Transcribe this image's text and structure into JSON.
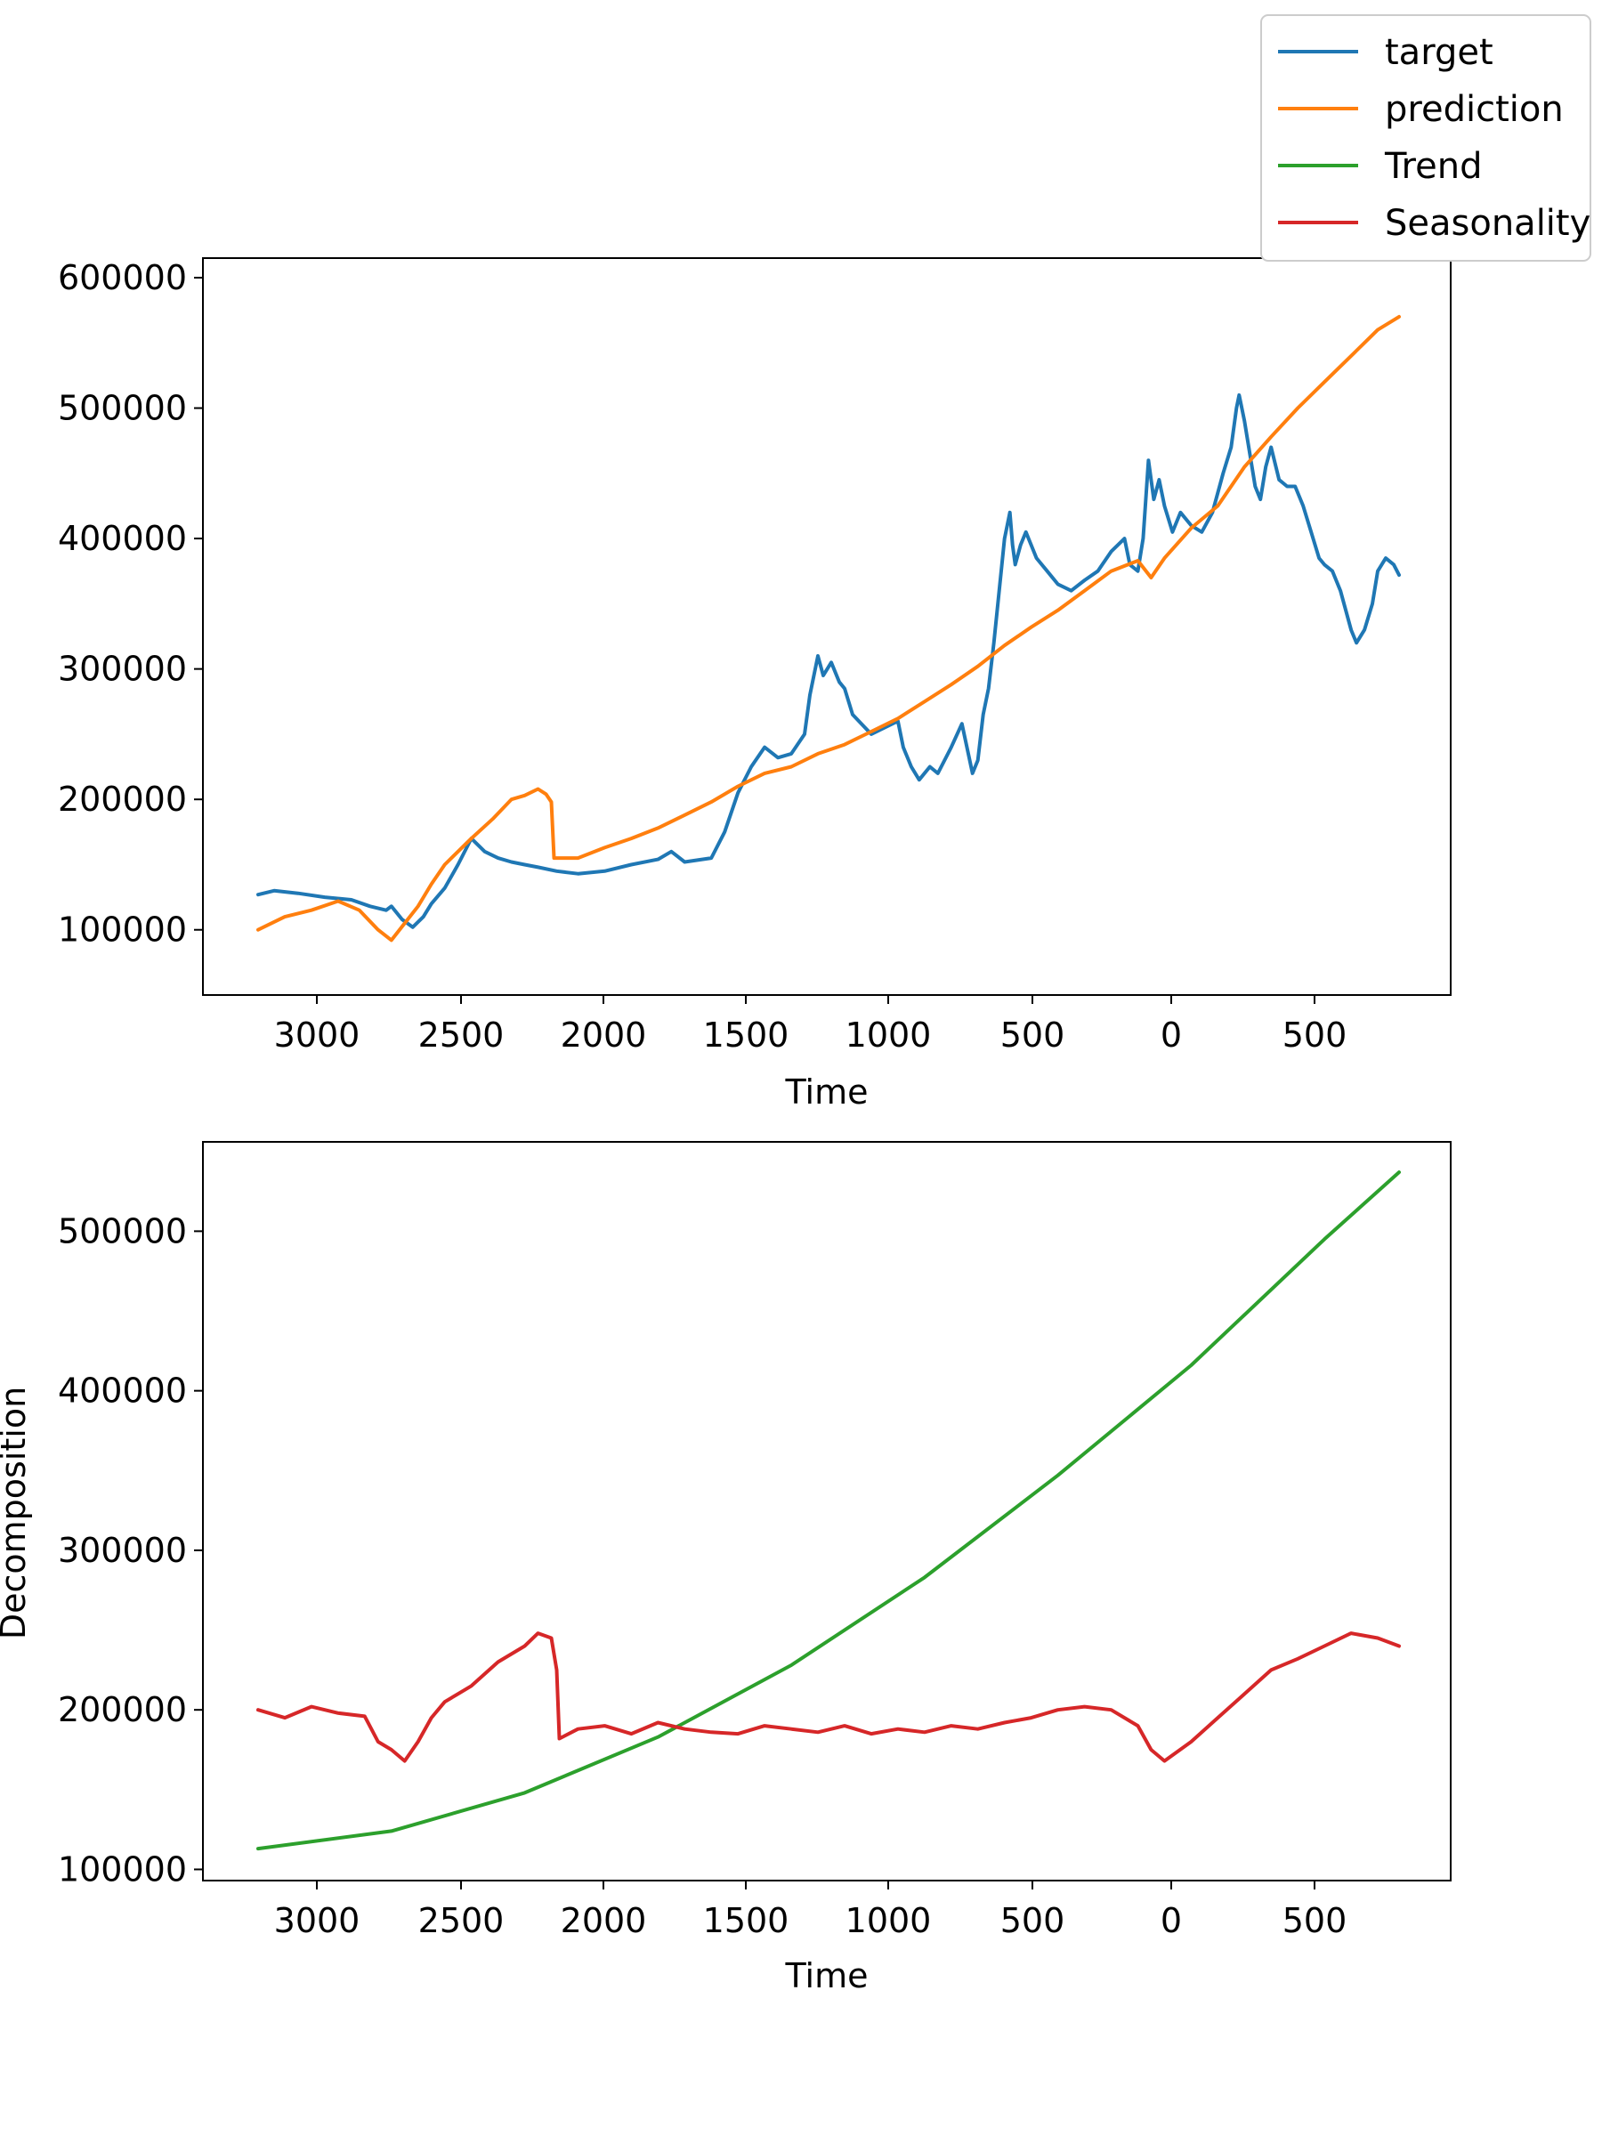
{
  "chart_data": [
    {
      "type": "line",
      "xlabel": "Time",
      "ylabel": "",
      "x_tick_labels": [
        "3000",
        "2500",
        "2000",
        "1500",
        "1000",
        "500",
        "0",
        "500"
      ],
      "y_tick_labels": [
        "100000",
        "200000",
        "300000",
        "400000",
        "500000",
        "600000"
      ],
      "y_ticks": [
        100000,
        200000,
        300000,
        400000,
        500000,
        600000
      ],
      "ylim": [
        50000,
        615000
      ],
      "grid": false,
      "series": [
        {
          "name": "target",
          "color": "#1f77b4",
          "points": [
            [
              0,
              127000
            ],
            [
              60,
              130000
            ],
            [
              150,
              128000
            ],
            [
              250,
              125000
            ],
            [
              350,
              123000
            ],
            [
              420,
              118000
            ],
            [
              480,
              115000
            ],
            [
              500,
              118000
            ],
            [
              540,
              108000
            ],
            [
              580,
              102000
            ],
            [
              620,
              110000
            ],
            [
              650,
              120000
            ],
            [
              700,
              132000
            ],
            [
              750,
              150000
            ],
            [
              800,
              170000
            ],
            [
              850,
              160000
            ],
            [
              900,
              155000
            ],
            [
              950,
              152000
            ],
            [
              1000,
              150000
            ],
            [
              1050,
              148000
            ],
            [
              1120,
              145000
            ],
            [
              1200,
              143000
            ],
            [
              1300,
              145000
            ],
            [
              1400,
              150000
            ],
            [
              1500,
              154000
            ],
            [
              1550,
              160000
            ],
            [
              1600,
              152000
            ],
            [
              1700,
              155000
            ],
            [
              1750,
              175000
            ],
            [
              1800,
              205000
            ],
            [
              1850,
              225000
            ],
            [
              1900,
              240000
            ],
            [
              1950,
              232000
            ],
            [
              2000,
              235000
            ],
            [
              2050,
              250000
            ],
            [
              2070,
              280000
            ],
            [
              2090,
              300000
            ],
            [
              2100,
              310000
            ],
            [
              2120,
              295000
            ],
            [
              2150,
              305000
            ],
            [
              2180,
              290000
            ],
            [
              2200,
              285000
            ],
            [
              2230,
              265000
            ],
            [
              2300,
              250000
            ],
            [
              2350,
              255000
            ],
            [
              2400,
              260000
            ],
            [
              2420,
              240000
            ],
            [
              2450,
              225000
            ],
            [
              2480,
              215000
            ],
            [
              2520,
              225000
            ],
            [
              2550,
              220000
            ],
            [
              2600,
              240000
            ],
            [
              2640,
              258000
            ],
            [
              2680,
              220000
            ],
            [
              2700,
              230000
            ],
            [
              2720,
              265000
            ],
            [
              2740,
              285000
            ],
            [
              2760,
              320000
            ],
            [
              2780,
              360000
            ],
            [
              2800,
              400000
            ],
            [
              2820,
              420000
            ],
            [
              2830,
              395000
            ],
            [
              2840,
              380000
            ],
            [
              2860,
              395000
            ],
            [
              2880,
              405000
            ],
            [
              2920,
              385000
            ],
            [
              2960,
              375000
            ],
            [
              3000,
              365000
            ],
            [
              3050,
              360000
            ],
            [
              3100,
              368000
            ],
            [
              3150,
              375000
            ],
            [
              3200,
              390000
            ],
            [
              3250,
              400000
            ],
            [
              3270,
              380000
            ],
            [
              3300,
              375000
            ],
            [
              3320,
              400000
            ],
            [
              3340,
              460000
            ],
            [
              3360,
              430000
            ],
            [
              3380,
              445000
            ],
            [
              3400,
              425000
            ],
            [
              3430,
              405000
            ],
            [
              3460,
              420000
            ],
            [
              3500,
              410000
            ],
            [
              3540,
              405000
            ],
            [
              3580,
              420000
            ],
            [
              3620,
              450000
            ],
            [
              3650,
              470000
            ],
            [
              3670,
              500000
            ],
            [
              3680,
              510000
            ],
            [
              3700,
              490000
            ],
            [
              3720,
              465000
            ],
            [
              3740,
              440000
            ],
            [
              3760,
              430000
            ],
            [
              3780,
              455000
            ],
            [
              3800,
              470000
            ],
            [
              3830,
              445000
            ],
            [
              3860,
              440000
            ],
            [
              3890,
              440000
            ],
            [
              3920,
              425000
            ],
            [
              3950,
              405000
            ],
            [
              3980,
              385000
            ],
            [
              4000,
              380000
            ],
            [
              4030,
              375000
            ],
            [
              4060,
              360000
            ],
            [
              4080,
              345000
            ],
            [
              4100,
              330000
            ],
            [
              4120,
              320000
            ],
            [
              4150,
              330000
            ],
            [
              4180,
              350000
            ],
            [
              4200,
              375000
            ],
            [
              4230,
              385000
            ],
            [
              4260,
              380000
            ],
            [
              4280,
              372000
            ]
          ]
        },
        {
          "name": "prediction",
          "color": "#ff7f0e",
          "points": [
            [
              0,
              100000
            ],
            [
              100,
              110000
            ],
            [
              200,
              115000
            ],
            [
              300,
              122000
            ],
            [
              380,
              115000
            ],
            [
              450,
              100000
            ],
            [
              500,
              92000
            ],
            [
              550,
              105000
            ],
            [
              600,
              118000
            ],
            [
              650,
              135000
            ],
            [
              700,
              150000
            ],
            [
              800,
              170000
            ],
            [
              880,
              185000
            ],
            [
              950,
              200000
            ],
            [
              1000,
              203000
            ],
            [
              1050,
              208000
            ],
            [
              1080,
              204000
            ],
            [
              1100,
              198000
            ],
            [
              1110,
              155000
            ],
            [
              1200,
              155000
            ],
            [
              1300,
              163000
            ],
            [
              1400,
              170000
            ],
            [
              1500,
              178000
            ],
            [
              1600,
              188000
            ],
            [
              1700,
              198000
            ],
            [
              1800,
              210000
            ],
            [
              1900,
              220000
            ],
            [
              2000,
              225000
            ],
            [
              2100,
              235000
            ],
            [
              2200,
              242000
            ],
            [
              2300,
              252000
            ],
            [
              2400,
              262000
            ],
            [
              2500,
              275000
            ],
            [
              2600,
              288000
            ],
            [
              2700,
              302000
            ],
            [
              2800,
              318000
            ],
            [
              2900,
              332000
            ],
            [
              3000,
              345000
            ],
            [
              3100,
              360000
            ],
            [
              3200,
              375000
            ],
            [
              3300,
              383000
            ],
            [
              3350,
              370000
            ],
            [
              3400,
              385000
            ],
            [
              3500,
              408000
            ],
            [
              3600,
              425000
            ],
            [
              3700,
              455000
            ],
            [
              3800,
              478000
            ],
            [
              3900,
              500000
            ],
            [
              4000,
              520000
            ],
            [
              4100,
              540000
            ],
            [
              4200,
              560000
            ],
            [
              4280,
              570000
            ]
          ]
        }
      ]
    },
    {
      "type": "line",
      "xlabel": "Time",
      "ylabel": "Decomposition",
      "x_tick_labels": [
        "3000",
        "2500",
        "2000",
        "1500",
        "1000",
        "500",
        "0",
        "500"
      ],
      "y_tick_labels": [
        "100000",
        "200000",
        "300000",
        "400000",
        "500000"
      ],
      "y_ticks": [
        100000,
        200000,
        300000,
        400000,
        500000
      ],
      "ylim": [
        93000,
        556000
      ],
      "grid": false,
      "series": [
        {
          "name": "Trend",
          "color": "#2ca02c",
          "points": [
            [
              0,
              113000
            ],
            [
              500,
              124000
            ],
            [
              1000,
              148000
            ],
            [
              1500,
              183000
            ],
            [
              2000,
              228000
            ],
            [
              2500,
              283000
            ],
            [
              3000,
              347000
            ],
            [
              3500,
              416000
            ],
            [
              4000,
              495000
            ],
            [
              4280,
              537000
            ]
          ]
        },
        {
          "name": "Seasonality",
          "color": "#d62728",
          "points": [
            [
              0,
              200000
            ],
            [
              100,
              195000
            ],
            [
              200,
              202000
            ],
            [
              300,
              198000
            ],
            [
              400,
              196000
            ],
            [
              450,
              180000
            ],
            [
              500,
              175000
            ],
            [
              550,
              168000
            ],
            [
              600,
              180000
            ],
            [
              650,
              195000
            ],
            [
              700,
              205000
            ],
            [
              800,
              215000
            ],
            [
              900,
              230000
            ],
            [
              1000,
              240000
            ],
            [
              1050,
              248000
            ],
            [
              1100,
              245000
            ],
            [
              1120,
              225000
            ],
            [
              1130,
              182000
            ],
            [
              1200,
              188000
            ],
            [
              1300,
              190000
            ],
            [
              1400,
              185000
            ],
            [
              1500,
              192000
            ],
            [
              1600,
              188000
            ],
            [
              1700,
              186000
            ],
            [
              1800,
              185000
            ],
            [
              1900,
              190000
            ],
            [
              2000,
              188000
            ],
            [
              2100,
              186000
            ],
            [
              2200,
              190000
            ],
            [
              2300,
              185000
            ],
            [
              2400,
              188000
            ],
            [
              2500,
              186000
            ],
            [
              2600,
              190000
            ],
            [
              2700,
              188000
            ],
            [
              2800,
              192000
            ],
            [
              2900,
              195000
            ],
            [
              3000,
              200000
            ],
            [
              3100,
              202000
            ],
            [
              3200,
              200000
            ],
            [
              3300,
              190000
            ],
            [
              3350,
              175000
            ],
            [
              3400,
              168000
            ],
            [
              3500,
              180000
            ],
            [
              3600,
              195000
            ],
            [
              3700,
              210000
            ],
            [
              3800,
              225000
            ],
            [
              3900,
              232000
            ],
            [
              4000,
              240000
            ],
            [
              4100,
              248000
            ],
            [
              4200,
              245000
            ],
            [
              4280,
              240000
            ]
          ]
        }
      ]
    }
  ],
  "legend": {
    "placement": "top-right",
    "entries": [
      {
        "label": "target",
        "color": "#1f77b4"
      },
      {
        "label": "prediction",
        "color": "#ff7f0e"
      },
      {
        "label": "Trend",
        "color": "#2ca02c"
      },
      {
        "label": "Seasonality",
        "color": "#d62728"
      }
    ]
  }
}
